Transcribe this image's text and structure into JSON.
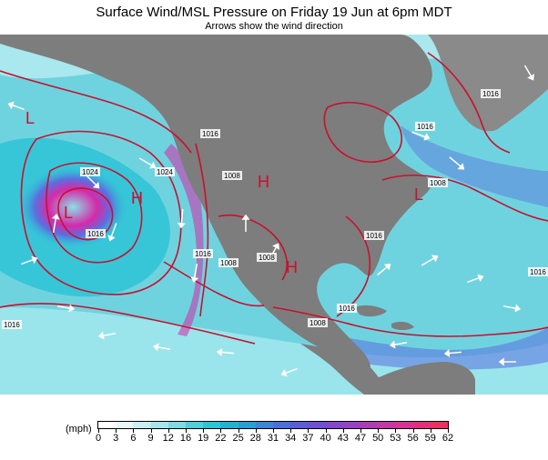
{
  "header": {
    "title": "Surface Wind/MSL Pressure on Friday 19 Jun at 6pm MDT",
    "subtitle": "Arrows show the wind direction"
  },
  "map": {
    "pressure_labels": [
      "1016",
      "1016",
      "1024",
      "1016",
      "1024",
      "1016",
      "1008",
      "1008",
      "1008",
      "1016",
      "1016",
      "1008",
      "1016",
      "1016",
      "1008",
      "1016"
    ],
    "highs": [
      "H",
      "H",
      "H"
    ],
    "lows": [
      "L",
      "L",
      "L"
    ],
    "colors": {
      "ocean_calm": "#8be0e6",
      "ocean_moderate": "#29c3d6",
      "ocean_strong": "#5b6fe0",
      "ocean_jet": "#d52aa8",
      "land": "#7d7d7d",
      "isobar": "#c8102e",
      "arrow": "#ffffff"
    }
  },
  "legend": {
    "unit": "(mph)",
    "ticks": [
      "0",
      "3",
      "6",
      "9",
      "12",
      "16",
      "19",
      "22",
      "25",
      "28",
      "31",
      "34",
      "37",
      "40",
      "43",
      "47",
      "50",
      "53",
      "56",
      "59",
      "62"
    ],
    "colors": [
      "#ffffff",
      "#e9f7f8",
      "#c9eff2",
      "#a3e6ec",
      "#7cdbe4",
      "#4fcfdc",
      "#2cc4d6",
      "#22b2d3",
      "#2a9ed6",
      "#3a86d8",
      "#4a70db",
      "#5a5cdc",
      "#6d4fd8",
      "#8446cf",
      "#9a40c4",
      "#b13bb6",
      "#c537a5",
      "#d63393",
      "#e3307e",
      "#ee2f66"
    ]
  }
}
